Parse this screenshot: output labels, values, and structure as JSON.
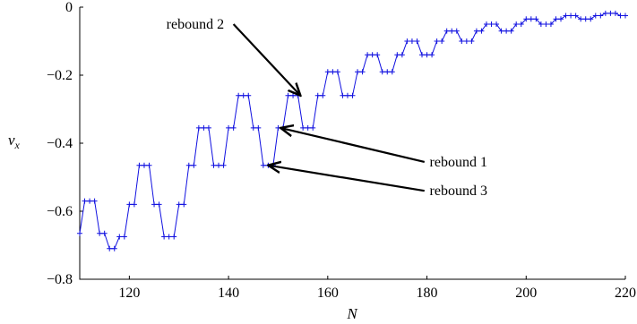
{
  "chart_data": {
    "type": "line",
    "xlabel": "N",
    "ylabel": "v",
    "ylabel_sub": "x",
    "xlim": [
      110,
      220
    ],
    "ylim": [
      -0.8,
      0
    ],
    "x_ticks": [
      {
        "value": 120,
        "label": "120"
      },
      {
        "value": 140,
        "label": "140"
      },
      {
        "value": 160,
        "label": "160"
      },
      {
        "value": 180,
        "label": "180"
      },
      {
        "value": 200,
        "label": "200"
      },
      {
        "value": 220,
        "label": "220"
      }
    ],
    "y_ticks": [
      {
        "value": 0,
        "label": "0"
      },
      {
        "value": -0.2,
        "label": "−0.2"
      },
      {
        "value": -0.4,
        "label": "−0.4"
      },
      {
        "value": -0.6,
        "label": "−0.6"
      },
      {
        "value": -0.8,
        "label": "−0.8"
      }
    ],
    "grid": false,
    "series": [
      {
        "color": "#1010e0",
        "marker": "plus",
        "x": [
          110,
          111,
          112,
          113,
          114,
          115,
          116,
          117,
          118,
          119,
          120,
          121,
          122,
          123,
          124,
          125,
          126,
          127,
          128,
          129,
          130,
          131,
          132,
          133,
          134,
          135,
          136,
          137,
          138,
          139,
          140,
          141,
          142,
          143,
          144,
          145,
          146,
          147,
          148,
          149,
          150,
          151,
          152,
          153,
          154,
          155,
          156,
          157,
          158,
          159,
          160,
          161,
          162,
          163,
          164,
          165,
          166,
          167,
          168,
          169,
          170,
          171,
          172,
          173,
          174,
          175,
          176,
          177,
          178,
          179,
          180,
          181,
          182,
          183,
          184,
          185,
          186,
          187,
          188,
          189,
          190,
          191,
          192,
          193,
          194,
          195,
          196,
          197,
          198,
          199,
          200,
          201,
          202,
          203,
          204,
          205,
          206,
          207,
          208,
          209,
          210,
          211,
          212,
          213,
          214,
          215,
          216,
          217,
          218,
          219,
          220
        ],
        "y": [
          -0.665,
          -0.57,
          -0.57,
          -0.57,
          -0.665,
          -0.665,
          -0.71,
          -0.71,
          -0.675,
          -0.675,
          -0.58,
          -0.58,
          -0.465,
          -0.465,
          -0.465,
          -0.58,
          -0.58,
          -0.675,
          -0.675,
          -0.675,
          -0.58,
          -0.58,
          -0.465,
          -0.465,
          -0.355,
          -0.355,
          -0.355,
          -0.465,
          -0.465,
          -0.465,
          -0.355,
          -0.355,
          -0.26,
          -0.26,
          -0.26,
          -0.355,
          -0.355,
          -0.465,
          -0.465,
          -0.465,
          -0.355,
          -0.355,
          -0.26,
          -0.26,
          -0.26,
          -0.355,
          -0.355,
          -0.355,
          -0.26,
          -0.26,
          -0.19,
          -0.19,
          -0.19,
          -0.26,
          -0.26,
          -0.26,
          -0.19,
          -0.19,
          -0.14,
          -0.14,
          -0.14,
          -0.19,
          -0.19,
          -0.19,
          -0.14,
          -0.14,
          -0.1,
          -0.1,
          -0.1,
          -0.14,
          -0.14,
          -0.14,
          -0.1,
          -0.1,
          -0.07,
          -0.07,
          -0.07,
          -0.1,
          -0.1,
          -0.1,
          -0.07,
          -0.07,
          -0.05,
          -0.05,
          -0.05,
          -0.07,
          -0.07,
          -0.07,
          -0.05,
          -0.05,
          -0.035,
          -0.035,
          -0.035,
          -0.05,
          -0.05,
          -0.05,
          -0.035,
          -0.035,
          -0.025,
          -0.025,
          -0.025,
          -0.035,
          -0.035,
          -0.035,
          -0.025,
          -0.025,
          -0.018,
          -0.018,
          -0.018,
          -0.025,
          -0.025
        ]
      }
    ],
    "annotations": [
      {
        "text": "rebound 2",
        "side": "left",
        "text_x": 140,
        "text_y": -0.05,
        "tail_x": 141,
        "tail_y": -0.05,
        "x": 154.5,
        "y": -0.26
      },
      {
        "text": "rebound 1",
        "side": "right",
        "text_x": 180,
        "text_y": -0.455,
        "tail_x": 179.5,
        "tail_y": -0.455,
        "x": 150.5,
        "y": -0.355
      },
      {
        "text": "rebound 3",
        "side": "right",
        "text_x": 180,
        "text_y": -0.54,
        "tail_x": 179.5,
        "tail_y": -0.54,
        "x": 148,
        "y": -0.465
      }
    ]
  }
}
